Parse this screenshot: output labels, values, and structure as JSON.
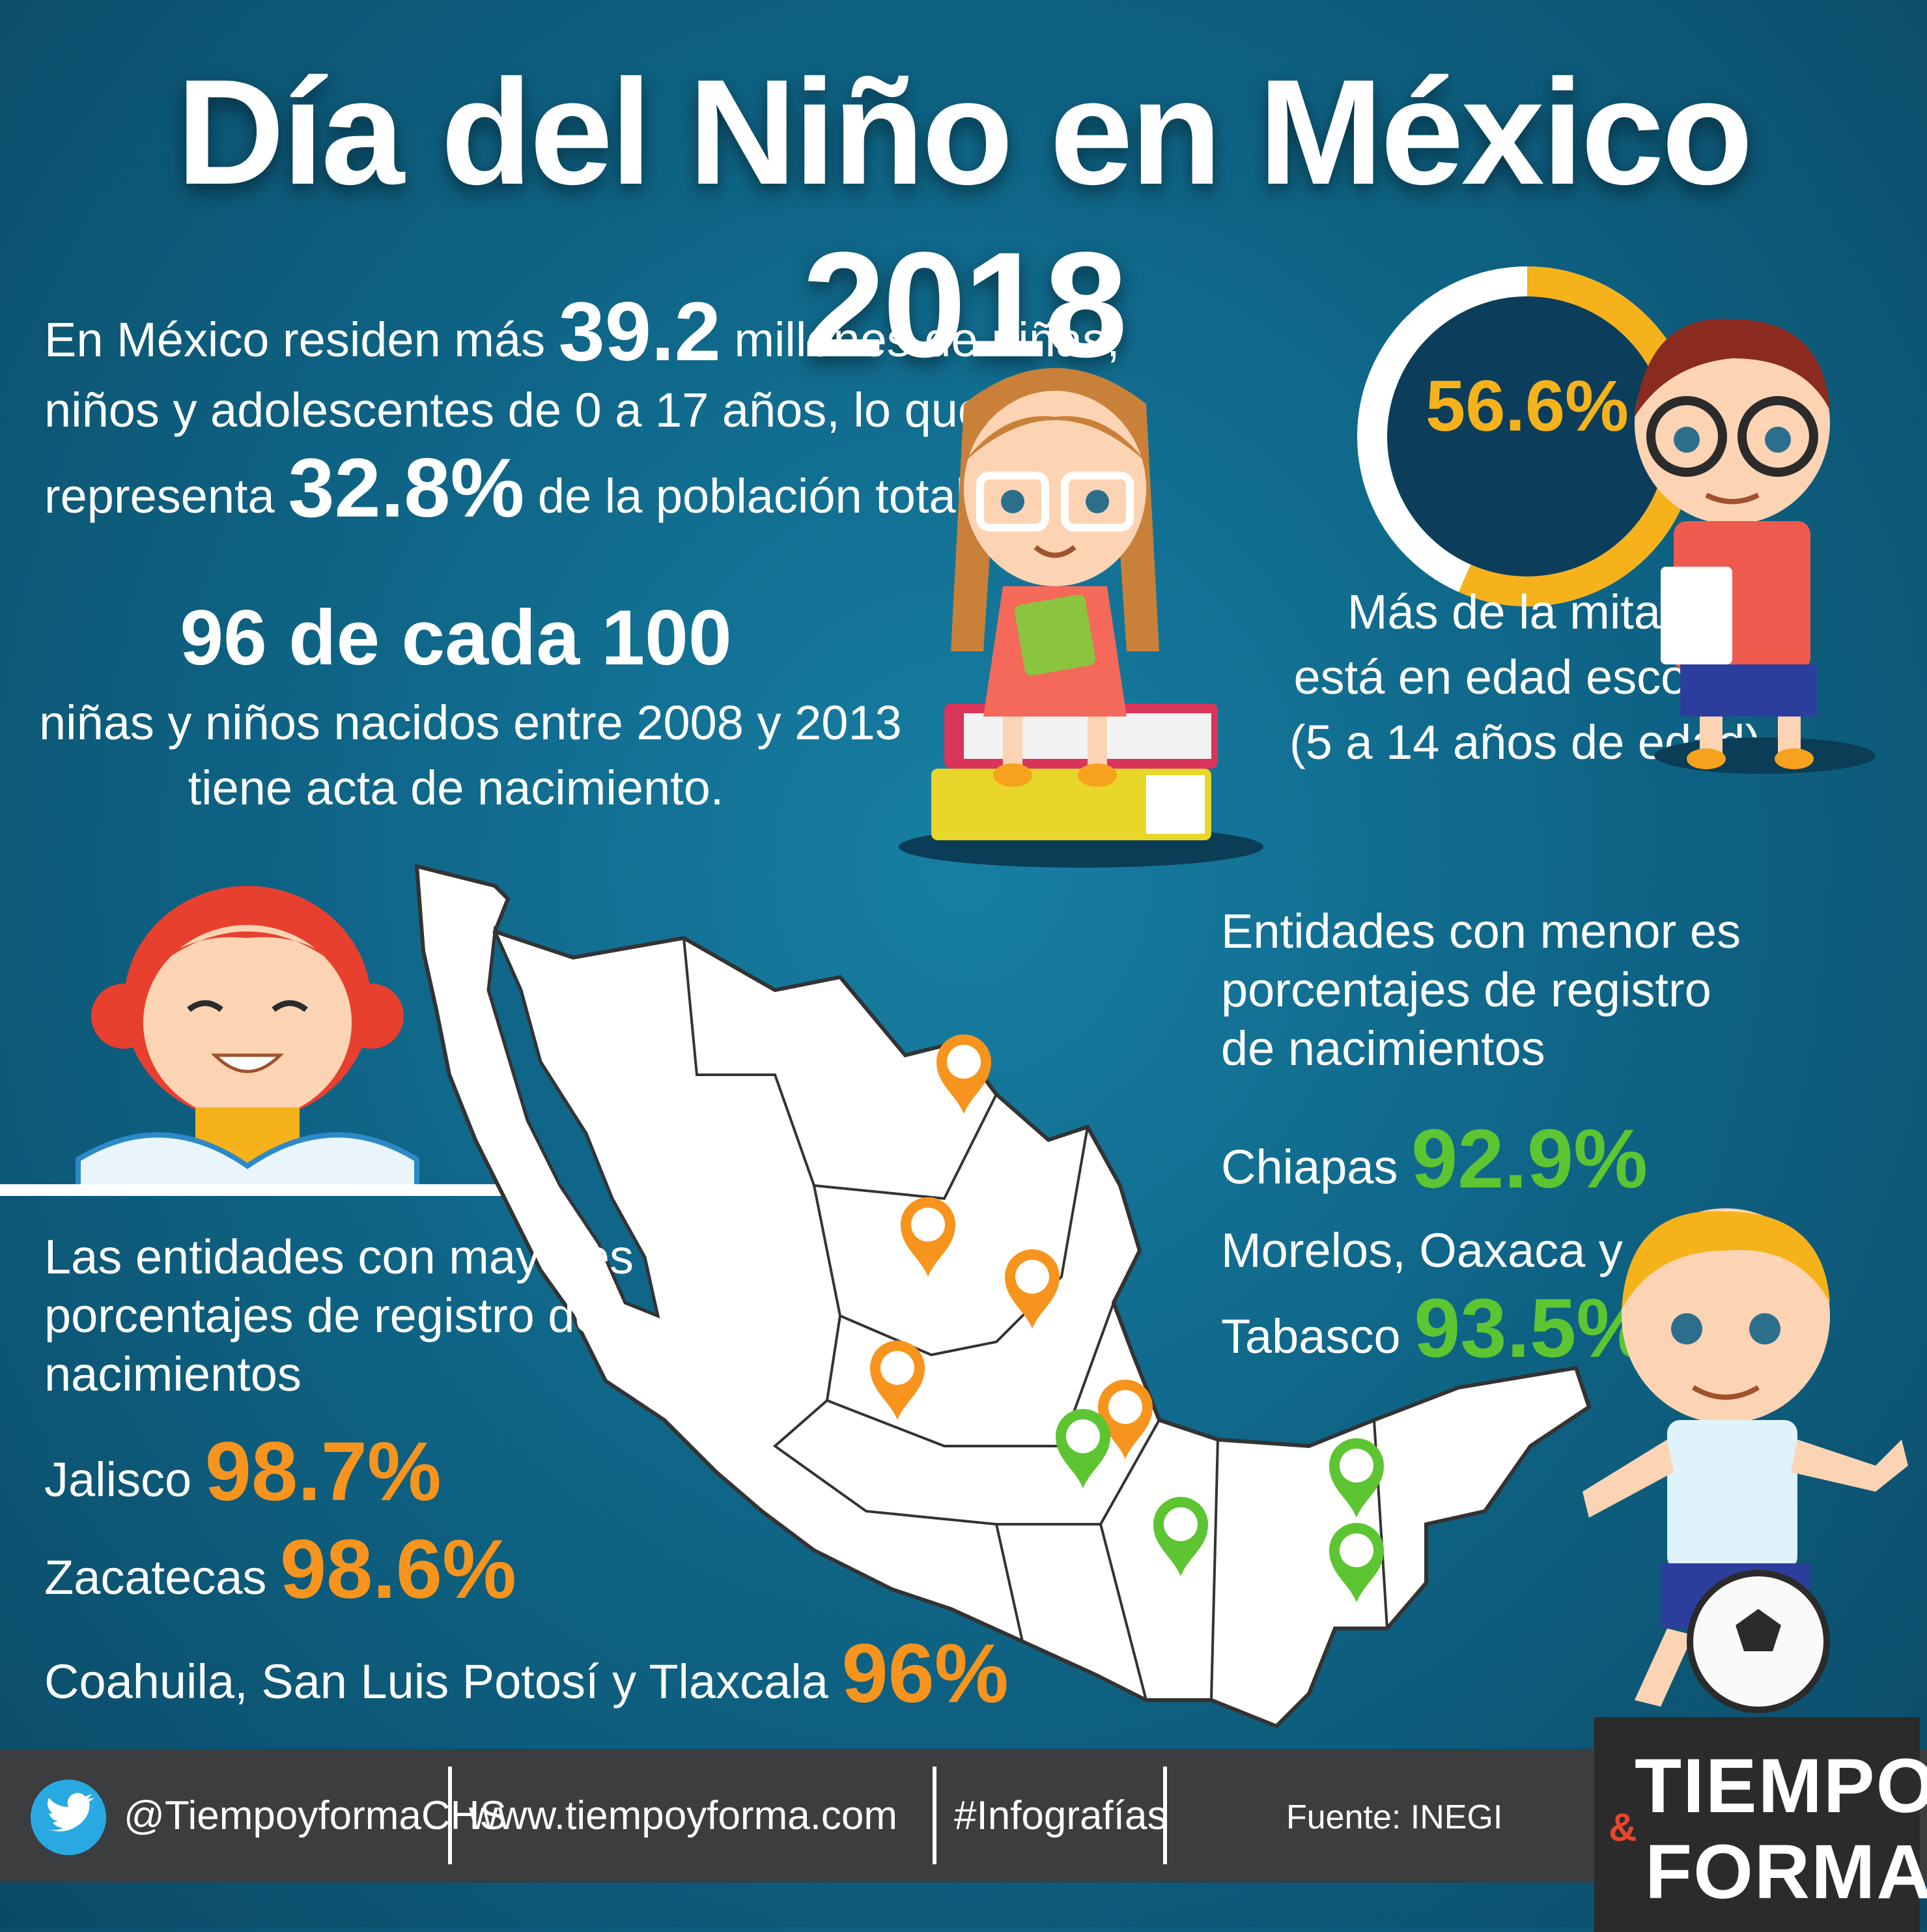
{
  "title": "Día del Niño en México 2018",
  "intro": {
    "line1_a": "En México residen más ",
    "line1_num": "39.2",
    "line1_b": " millones de niñas,",
    "line2": "niños y adolescentes de 0 a 17 años, lo que",
    "line3_a": "representa ",
    "line3_num": "32.8%",
    "line3_b": " de la población total."
  },
  "births": {
    "headline": "96 de cada 100",
    "line1": "niñas y niños nacidos entre 2008 y 2013",
    "line2": "tiene acta de nacimiento."
  },
  "school": {
    "percent_label": "56.6%",
    "percent_value": 56.6,
    "line1": "Más de la mitad",
    "line2": "está en edad escolar",
    "line3": "(5 a 14 años de edad)"
  },
  "lowest": {
    "heading_lines": [
      "Entidades con menor es",
      "porcentajes de registro",
      "de nacimientos"
    ],
    "items": [
      {
        "label": "Chiapas ",
        "value": "92.9%"
      },
      {
        "label_line1": "Morelos, Oaxaca y",
        "label": "Tabasco ",
        "value": "93.5%"
      }
    ]
  },
  "highest": {
    "heading_lines": [
      "Las entidades con mayores",
      "porcentajes de registro de",
      "nacimientos"
    ],
    "items": [
      {
        "label": "Jalisco ",
        "value": "98.7%"
      },
      {
        "label": "Zacatecas ",
        "value": "98.6%"
      },
      {
        "label": "Coahuila, San Luis Potosí y Tlaxcala ",
        "value": "96%"
      }
    ]
  },
  "footer": {
    "twitter": "@TiempoyformaCHS",
    "website": "www.tiempoyforma.com",
    "hashtag": "#Infografías",
    "source": "Fuente: INEGI"
  },
  "logo": {
    "line1": "TIEMPO",
    "amp": "&",
    "line2": "FORMA"
  },
  "colors": {
    "high": "#f7941d",
    "low": "#5cc531",
    "ring": "#f6b21a",
    "background": "#0f6688"
  }
}
